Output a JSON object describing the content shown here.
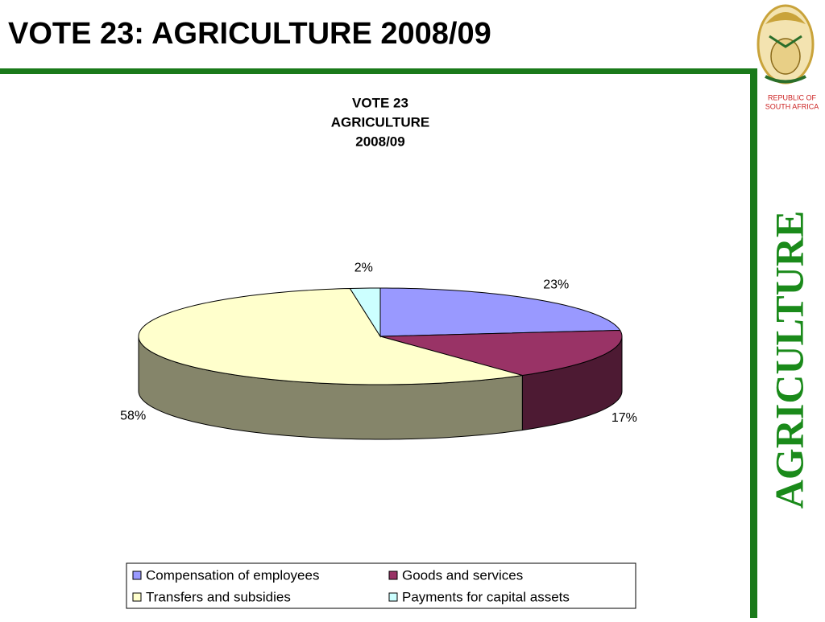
{
  "header": {
    "title": "VOTE 23: AGRICULTURE 2008/09",
    "side_label": "AGRICULTURE",
    "logo_lines": [
      "REPUBLIC OF",
      "SOUTH AFRICA"
    ]
  },
  "chart_data": {
    "type": "pie",
    "title": [
      "VOTE 23",
      "AGRICULTURE",
      "2008/09"
    ],
    "categories": [
      "Compensation of employees",
      "Goods and services",
      "Transfers and subsidies",
      "Payments for capital assets"
    ],
    "values": [
      23,
      17,
      58,
      2
    ],
    "value_labels": [
      "23%",
      "17%",
      "58%",
      "2%"
    ],
    "colors": [
      "#9999ff",
      "#993366",
      "#ffffcc",
      "#ccffff"
    ]
  }
}
